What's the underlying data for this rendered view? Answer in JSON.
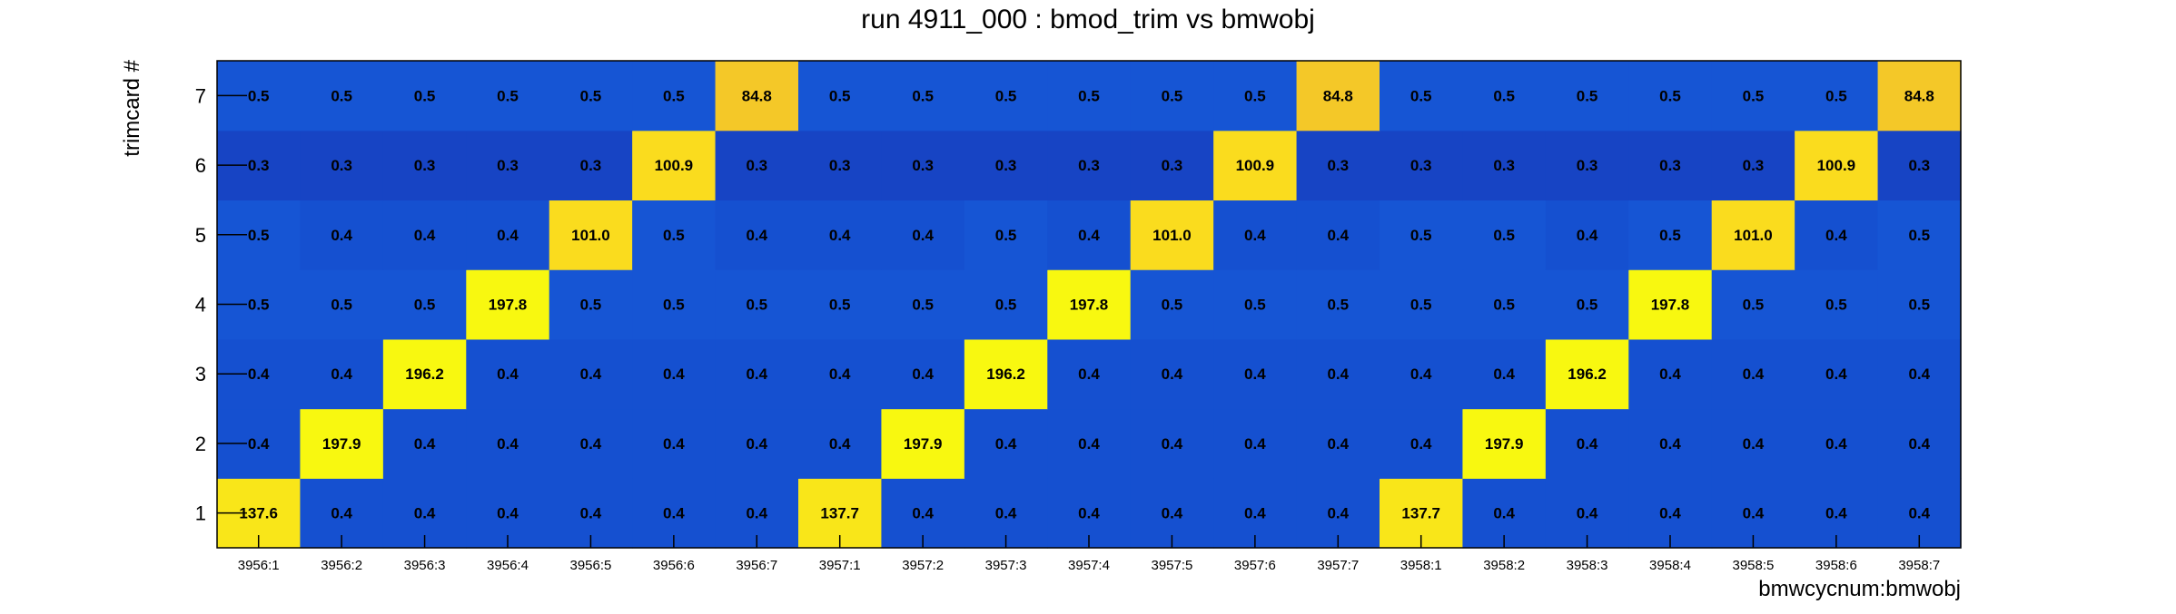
{
  "chart_data": {
    "type": "heatmap",
    "title": "run 4911_000 : bmod_trim vs bmwobj",
    "xlabel": "bmwcycnum:bmwobj",
    "ylabel": "trimcard #",
    "x_categories": [
      "3956:1",
      "3956:2",
      "3956:3",
      "3956:4",
      "3956:5",
      "3956:6",
      "3956:7",
      "3957:1",
      "3957:2",
      "3957:3",
      "3957:4",
      "3957:5",
      "3957:6",
      "3957:7",
      "3958:1",
      "3958:2",
      "3958:3",
      "3958:4",
      "3958:5",
      "3958:6",
      "3958:7"
    ],
    "y_categories": [
      "1",
      "2",
      "3",
      "4",
      "5",
      "6",
      "7"
    ],
    "values": [
      [
        "137.6",
        "0.4",
        "0.4",
        "0.4",
        "0.4",
        "0.4",
        "0.4",
        "137.7",
        "0.4",
        "0.4",
        "0.4",
        "0.4",
        "0.4",
        "0.4",
        "137.7",
        "0.4",
        "0.4",
        "0.4",
        "0.4",
        "0.4",
        "0.4"
      ],
      [
        "0.4",
        "197.9",
        "0.4",
        "0.4",
        "0.4",
        "0.4",
        "0.4",
        "0.4",
        "197.9",
        "0.4",
        "0.4",
        "0.4",
        "0.4",
        "0.4",
        "0.4",
        "197.9",
        "0.4",
        "0.4",
        "0.4",
        "0.4",
        "0.4"
      ],
      [
        "0.4",
        "0.4",
        "196.2",
        "0.4",
        "0.4",
        "0.4",
        "0.4",
        "0.4",
        "0.4",
        "196.2",
        "0.4",
        "0.4",
        "0.4",
        "0.4",
        "0.4",
        "0.4",
        "196.2",
        "0.4",
        "0.4",
        "0.4",
        "0.4"
      ],
      [
        "0.5",
        "0.5",
        "0.5",
        "197.8",
        "0.5",
        "0.5",
        "0.5",
        "0.5",
        "0.5",
        "0.5",
        "197.8",
        "0.5",
        "0.5",
        "0.5",
        "0.5",
        "0.5",
        "0.5",
        "197.8",
        "0.5",
        "0.5",
        "0.5"
      ],
      [
        "0.5",
        "0.4",
        "0.4",
        "0.4",
        "101.0",
        "0.5",
        "0.4",
        "0.4",
        "0.4",
        "0.5",
        "0.4",
        "101.0",
        "0.4",
        "0.4",
        "0.5",
        "0.5",
        "0.4",
        "0.5",
        "101.0",
        "0.4",
        "0.5"
      ],
      [
        "0.3",
        "0.3",
        "0.3",
        "0.3",
        "0.3",
        "100.9",
        "0.3",
        "0.3",
        "0.3",
        "0.3",
        "0.3",
        "0.3",
        "100.9",
        "0.3",
        "0.3",
        "0.3",
        "0.3",
        "0.3",
        "0.3",
        "100.9",
        "0.3"
      ],
      [
        "0.5",
        "0.5",
        "0.5",
        "0.5",
        "0.5",
        "0.5",
        "84.8",
        "0.5",
        "0.5",
        "0.5",
        "0.5",
        "0.5",
        "0.5",
        "84.8",
        "0.5",
        "0.5",
        "0.5",
        "0.5",
        "0.5",
        "0.5",
        "84.8"
      ]
    ],
    "z_range": [
      0,
      197.9
    ],
    "colormap": [
      "#1e1e9e",
      "#1550d0",
      "#1a64e0",
      "#f2c12c",
      "#fadb1e",
      "#f8f810"
    ],
    "grid": false,
    "legend": "none"
  }
}
